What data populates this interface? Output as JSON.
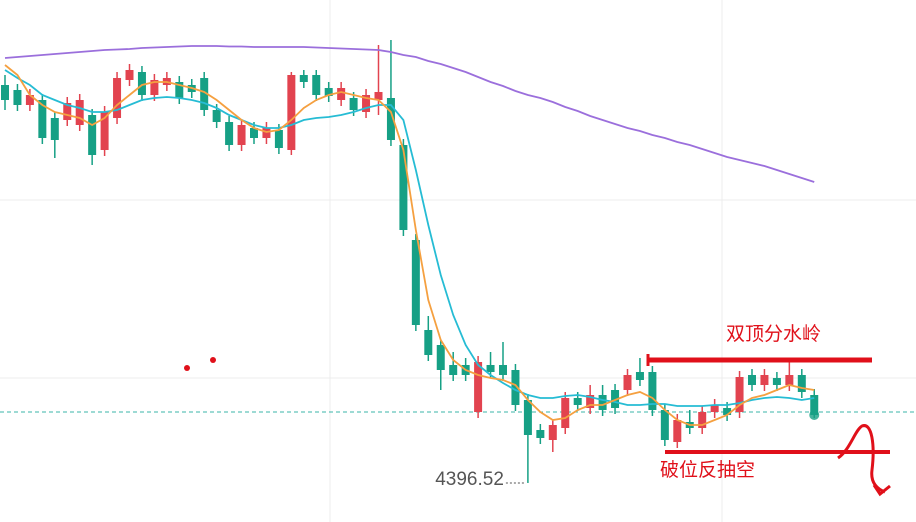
{
  "chart_data": {
    "type": "candlestick",
    "up_color": "#e2434f",
    "down_color": "#16a085",
    "ylim": [
      4377,
      4638
    ],
    "open": [
      4595.5,
      4593,
      4585.5,
      4588,
      4579,
      4578,
      4575.5,
      4580.5,
      4563,
      4579,
      4598,
      4602,
      4590.5,
      4595.5,
      4597,
      4595.5,
      4599,
      4583,
      4577,
      4565.5,
      4574,
      4569,
      4573,
      4563,
      4600.5,
      4600.5,
      4594,
      4588,
      4589,
      4582,
      4588,
      4589,
      4565.5,
      4518,
      4473,
      4465.5,
      4455.5,
      4455.5,
      4432,
      4455.5,
      4455.5,
      4453,
      4438,
      4423,
      4418,
      4424,
      4439,
      4434,
      4440.5,
      4443,
      4443,
      4452,
      4452,
      4433,
      4417,
      4427,
      4424,
      4432,
      4434,
      4432,
      4450.5,
      4445.5,
      4449,
      4445.5,
      4450.5,
      4440.5
    ],
    "high": [
      4600.5,
      4596,
      4593.5,
      4591,
      4582,
      4589.5,
      4591,
      4583.5,
      4585,
      4602,
      4606,
      4605,
      4601,
      4602,
      4600,
      4598.5,
      4602,
      4586,
      4580,
      4578.5,
      4577,
      4577,
      4576,
      4602,
      4603,
      4603,
      4597,
      4597,
      4592,
      4593.5,
      4615.5,
      4618,
      4568.5,
      4521,
      4480,
      4468.5,
      4462,
      4459,
      4460,
      4462,
      4467,
      4456,
      4441,
      4426,
      4428.5,
      4442,
      4442,
      4445.5,
      4445.5,
      4446,
      4453.5,
      4459,
      4455,
      4436,
      4431,
      4433,
      4435,
      4438.5,
      4437,
      4452.5,
      4453.5,
      4453.5,
      4452,
      4458,
      4453.5,
      4443.5
    ],
    "low": [
      4583,
      4582.5,
      4582.5,
      4566,
      4559,
      4575,
      4572.5,
      4555.5,
      4560,
      4576,
      4595,
      4587.5,
      4587.5,
      4592.5,
      4586,
      4589,
      4580,
      4574,
      4562.5,
      4562.5,
      4566,
      4566,
      4561,
      4560.5,
      4594,
      4587.5,
      4587,
      4585,
      4580,
      4579,
      4580.5,
      4565,
      4520,
      4472.5,
      4457.5,
      4443,
      4447.5,
      4447.5,
      4429,
      4449,
      4447.5,
      4432.5,
      4396.52,
      4416,
      4412,
      4421,
      4432.5,
      4431,
      4430,
      4431,
      4440,
      4445,
      4430,
      4415,
      4414,
      4421,
      4421,
      4429,
      4427.5,
      4429,
      4442.5,
      4442.5,
      4442.5,
      4442.5,
      4439,
      4429
    ],
    "close": [
      4588,
      4585.5,
      4590.5,
      4569,
      4568,
      4586.5,
      4588,
      4560.5,
      4582,
      4599,
      4603,
      4590.5,
      4598,
      4599,
      4589,
      4592,
      4583,
      4577,
      4565.5,
      4575.5,
      4569,
      4574,
      4564,
      4600.5,
      4597,
      4590.5,
      4590,
      4594,
      4583,
      4590.5,
      4592,
      4568,
      4523,
      4475.5,
      4460.5,
      4453,
      4450.5,
      4450.5,
      4457,
      4452,
      4450.5,
      4435.5,
      4420.5,
      4419,
      4425.5,
      4439,
      4435.5,
      4440.5,
      4433,
      4434,
      4450.5,
      4448,
      4433,
      4418,
      4428,
      4424,
      4432,
      4435.5,
      4430.5,
      4449.5,
      4445.5,
      4450.5,
      4445.5,
      4450.5,
      4442,
      4430.5
    ],
    "series": [
      {
        "color": "#9b6fdc",
        "values": [
          4609,
          4609.5,
          4610,
          4610.5,
          4611,
          4611.5,
          4612,
          4612.5,
          4613,
          4613.25,
          4613.5,
          4614,
          4614.25,
          4614.5,
          4614.75,
          4615,
          4615,
          4615,
          4614.75,
          4614.75,
          4614.5,
          4614.5,
          4614.5,
          4614.5,
          4614.5,
          4614.25,
          4614,
          4613.75,
          4613.5,
          4613.25,
          4613,
          4612,
          4610.5,
          4609.5,
          4607.5,
          4606,
          4604,
          4602,
          4599.5,
          4597,
          4595,
          4592.5,
          4590.5,
          4589,
          4587,
          4584.5,
          4582.5,
          4580,
          4578,
          4576,
          4574,
          4572.5,
          4570.5,
          4569,
          4567,
          4565.5,
          4563.5,
          4561.5,
          4559.5,
          4558,
          4556.5,
          4555,
          4553,
          4551,
          4549,
          4547
        ]
      },
      {
        "color": "#26bcd4",
        "values": [
          4603,
          4599,
          4595.5,
          4590.5,
          4588,
          4585.5,
          4584,
          4582,
          4582,
          4583,
          4585.5,
          4588,
          4589,
          4589.5,
          4589,
          4588,
          4586.5,
          4584,
          4580.5,
          4578,
          4575.5,
          4574,
          4574,
          4575.5,
          4578,
          4579,
          4579.5,
          4580.5,
          4582,
          4584,
          4585.5,
          4585.5,
          4578,
          4553,
          4525.5,
          4500.5,
          4480.5,
          4465.5,
          4455.5,
          4450.5,
          4446.5,
          4443,
          4440.5,
          4439,
          4439,
          4440,
          4440.5,
          4439.5,
          4438,
          4437,
          4435.5,
          4435.5,
          4436,
          4436,
          4435,
          4435,
          4435,
          4435.5,
          4435.5,
          4436.5,
          4438,
          4439,
          4439.5,
          4439,
          4438,
          4439
        ]
      },
      {
        "color": "#f5a040",
        "values": [
          4605.5,
          4600.5,
          4590.5,
          4585.5,
          4582,
          4580.5,
          4579,
          4575.5,
          4579,
          4585.5,
          4590.5,
          4595.5,
          4597,
          4597,
          4595.5,
          4594,
          4592,
          4588,
          4583,
          4578,
          4574,
          4572,
          4573,
          4578,
          4584,
          4588,
          4590.5,
          4592,
          4590.5,
          4589,
          4588,
          4582,
          4563,
          4523,
          4488,
          4468,
          4458,
          4453,
          4450.5,
          4449,
          4448,
          4445.5,
          4438,
          4432,
          4428,
          4429,
          4433,
          4435.5,
          4435.5,
          4438,
          4440.5,
          4442,
          4439,
          4433,
          4428,
          4425.5,
          4425.5,
          4428,
          4430.5,
          4435.5,
          4439,
          4440.5,
          4443,
          4445.5,
          4444,
          4443
        ]
      }
    ],
    "current_price": 4432,
    "annotations": [
      "双顶分水岭",
      "破位反抽空"
    ]
  }
}
